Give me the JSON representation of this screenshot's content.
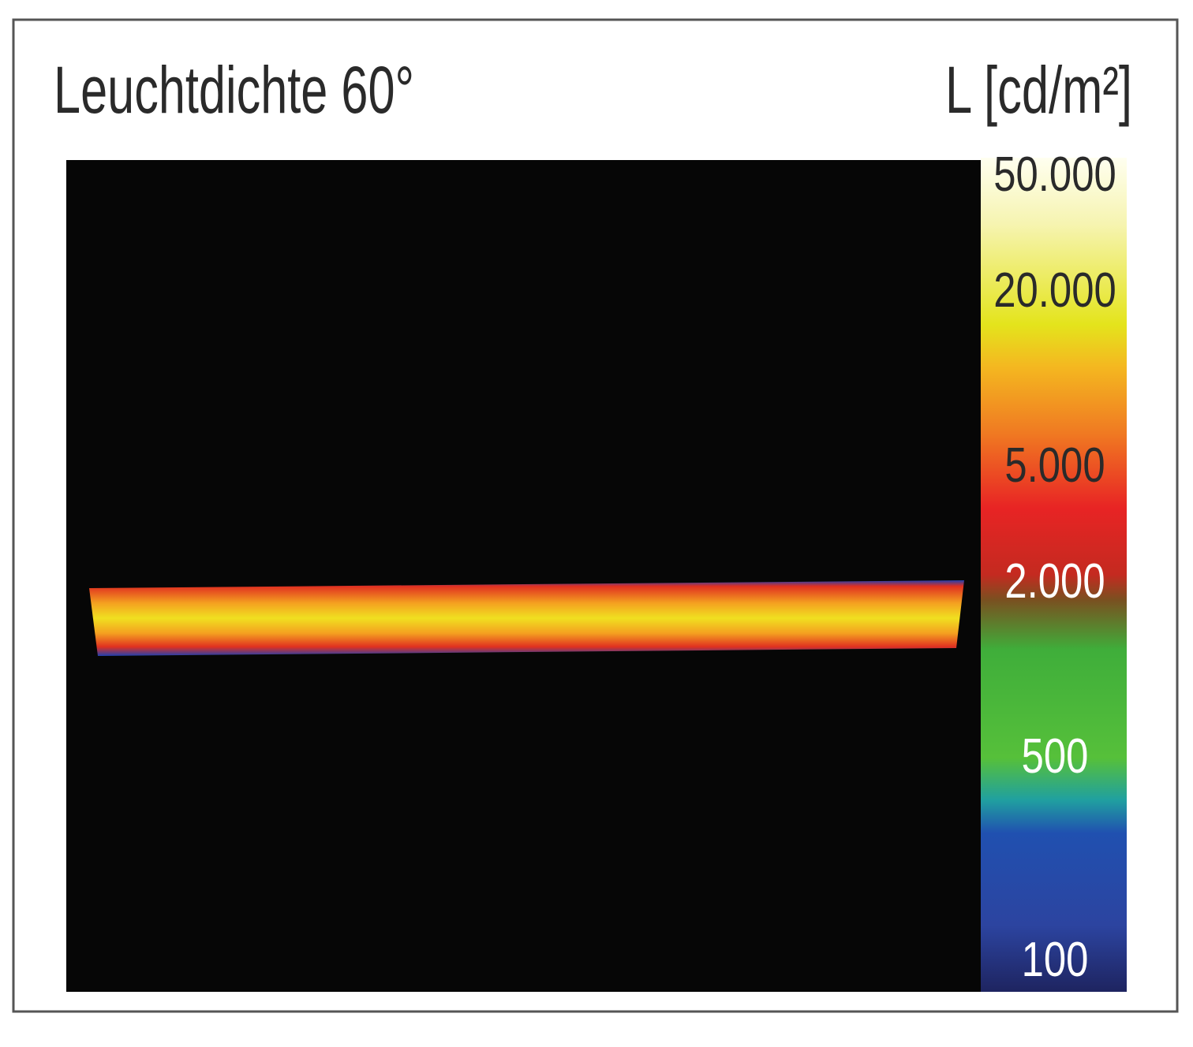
{
  "chart_data": {
    "type": "colorbar",
    "title": "Leuchtdichte 60°",
    "unit_label": "L [cd/m²]",
    "log_scale": true,
    "ylim": [
      76,
      56000
    ],
    "yticks": [
      {
        "value": 50000,
        "label": "50.000"
      },
      {
        "value": 20000,
        "label": "20.000"
      },
      {
        "value": 5000,
        "label": "5.000"
      },
      {
        "value": 2000,
        "label": "2.000"
      },
      500,
      100
    ],
    "tick_colors": [
      "#2a2a2a",
      "#2a2a2a",
      "#2a2a2a",
      "#ffffff",
      "#ffffff",
      "#ffffff"
    ]
  }
}
